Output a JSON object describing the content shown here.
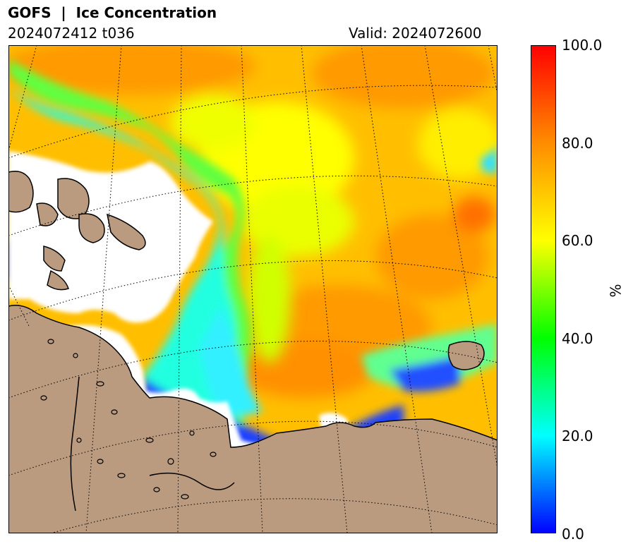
{
  "header": {
    "title": "GOFS  |  Ice Concentration",
    "run": "2024072412 t036",
    "valid": "Valid: 2024072600"
  },
  "colorbar": {
    "label": "%",
    "ticks": [
      "0.0",
      "20.0",
      "40.0",
      "60.0",
      "80.0",
      "100.0"
    ],
    "min": 0,
    "max": 100,
    "colors": [
      "#0000ff",
      "#00ffff",
      "#00ff00",
      "#ffff00",
      "#ff8c00",
      "#ff0000"
    ]
  },
  "map": {
    "land_color": "#bb9b7f",
    "ocean_color": "#ffffff"
  }
}
